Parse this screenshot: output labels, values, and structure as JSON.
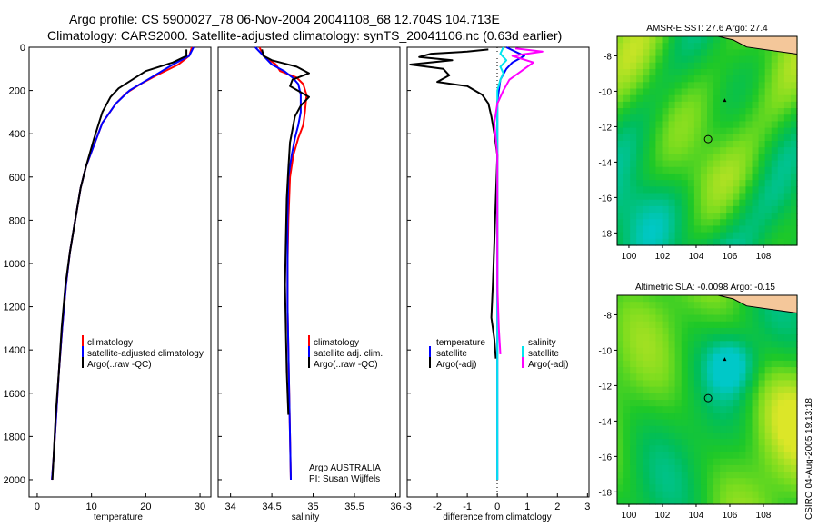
{
  "title": {
    "line1": "Argo profile: CS 5900027_78 06-Nov-2004 20041108_68 12.704S 104.713E",
    "line2": "Climatology: CARS2000. Satellite-adjusted climatology: synTS_20041106.nc (0.63d earlier)"
  },
  "colors": {
    "climatology": "#ff0000",
    "satellite": "#0000ff",
    "argo": "#000000",
    "salinity_sat": "#00e5ee",
    "salinity_argo": "#ff00ff"
  },
  "chart_data": [
    {
      "type": "line",
      "name": "temperature-profile",
      "xlabel": "temperature",
      "ylabel": "",
      "xlim": [
        -1.5,
        32
      ],
      "ylim": [
        2080,
        0
      ],
      "xticks": [
        "0",
        "10",
        "20",
        "30"
      ],
      "xtick_vals": [
        0,
        10,
        20,
        30
      ],
      "yticks": [
        "0",
        "200",
        "400",
        "600",
        "800",
        "1000",
        "1200",
        "1400",
        "1600",
        "1800",
        "2000"
      ],
      "ytick_vals": [
        0,
        200,
        400,
        600,
        800,
        1000,
        1200,
        1400,
        1600,
        1800,
        2000
      ],
      "legend": [
        "climatology",
        "satellite-adjusted climatology",
        "Argo(..raw -QC)"
      ],
      "series": [
        {
          "name": "climatology",
          "color": "#ff0000",
          "points": [
            [
              28.5,
              0
            ],
            [
              28,
              40
            ],
            [
              26,
              80
            ],
            [
              22,
              130
            ],
            [
              19,
              170
            ],
            [
              16.5,
              210
            ],
            [
              14.5,
              260
            ],
            [
              12,
              350
            ],
            [
              10.5,
              450
            ],
            [
              9,
              550
            ],
            [
              8,
              650
            ],
            [
              7,
              800
            ],
            [
              6,
              950
            ],
            [
              5.3,
              1100
            ],
            [
              4.6,
              1300
            ],
            [
              4,
              1500
            ],
            [
              3.5,
              1700
            ],
            [
              3,
              1900
            ],
            [
              2.7,
              2000
            ]
          ]
        },
        {
          "name": "satellite-adjusted climatology",
          "color": "#0000ff",
          "points": [
            [
              28.8,
              0
            ],
            [
              28,
              40
            ],
            [
              25,
              80
            ],
            [
              21,
              140
            ],
            [
              17,
              200
            ],
            [
              14.5,
              260
            ],
            [
              12,
              350
            ],
            [
              10.5,
              450
            ],
            [
              9,
              550
            ],
            [
              8,
              650
            ],
            [
              7,
              800
            ],
            [
              6,
              950
            ],
            [
              5.3,
              1100
            ],
            [
              4.6,
              1300
            ],
            [
              4,
              1500
            ],
            [
              3.5,
              1700
            ],
            [
              3,
              1900
            ],
            [
              2.7,
              2000
            ]
          ]
        },
        {
          "name": "Argo(..raw -QC)",
          "color": "#000000",
          "points": [
            [
              27.5,
              10
            ],
            [
              27.5,
              40
            ],
            [
              25,
              70
            ],
            [
              20,
              110
            ],
            [
              17.5,
              150
            ],
            [
              15,
              190
            ],
            [
              13.5,
              230
            ],
            [
              12,
              300
            ],
            [
              10.5,
              420
            ],
            [
              9,
              550
            ],
            [
              8,
              650
            ],
            [
              7,
              800
            ],
            [
              6,
              950
            ],
            [
              5.2,
              1100
            ],
            [
              4.5,
              1300
            ],
            [
              4,
              1500
            ],
            [
              3.4,
              1700
            ],
            [
              3,
              1900
            ],
            [
              2.8,
              2000
            ]
          ]
        }
      ]
    },
    {
      "type": "line",
      "name": "salinity-profile",
      "xlabel": "salinity",
      "xlim": [
        33.85,
        36.05
      ],
      "ylim": [
        2080,
        0
      ],
      "xticks": [
        "34",
        "34.5",
        "35",
        "35.5",
        "36"
      ],
      "xtick_vals": [
        34,
        34.5,
        35,
        35.5,
        36
      ],
      "legend": [
        "climatology",
        "satellite adj. clim.",
        "Argo(..raw -QC)"
      ],
      "annotation": [
        "Argo AUSTRALIA",
        "PI: Susan Wijffels"
      ],
      "series": [
        {
          "name": "climatology",
          "color": "#ff0000",
          "points": [
            [
              34.35,
              0
            ],
            [
              34.4,
              40
            ],
            [
              34.55,
              80
            ],
            [
              34.6,
              110
            ],
            [
              34.8,
              140
            ],
            [
              34.88,
              170
            ],
            [
              34.92,
              220
            ],
            [
              34.9,
              300
            ],
            [
              34.88,
              360
            ],
            [
              34.82,
              420
            ],
            [
              34.76,
              500
            ],
            [
              34.72,
              600
            ],
            [
              34.7,
              800
            ],
            [
              34.69,
              1000
            ],
            [
              34.69,
              1200
            ],
            [
              34.7,
              1400
            ],
            [
              34.71,
              1600
            ],
            [
              34.72,
              1800
            ],
            [
              34.73,
              2000
            ]
          ]
        },
        {
          "name": "satellite adj. clim.",
          "color": "#0000ff",
          "points": [
            [
              34.3,
              0
            ],
            [
              34.4,
              40
            ],
            [
              34.5,
              80
            ],
            [
              34.65,
              110
            ],
            [
              34.75,
              140
            ],
            [
              34.82,
              170
            ],
            [
              34.85,
              220
            ],
            [
              34.85,
              300
            ],
            [
              34.82,
              360
            ],
            [
              34.78,
              420
            ],
            [
              34.74,
              500
            ],
            [
              34.7,
              600
            ],
            [
              34.69,
              800
            ],
            [
              34.69,
              1000
            ],
            [
              34.69,
              1200
            ],
            [
              34.7,
              1400
            ],
            [
              34.71,
              1600
            ],
            [
              34.72,
              1800
            ],
            [
              34.73,
              2000
            ]
          ]
        },
        {
          "name": "Argo(..raw -QC)",
          "color": "#000000",
          "points": [
            [
              34.38,
              10
            ],
            [
              34.4,
              40
            ],
            [
              34.5,
              60
            ],
            [
              34.65,
              75
            ],
            [
              34.8,
              90
            ],
            [
              34.95,
              120
            ],
            [
              34.75,
              150
            ],
            [
              34.72,
              180
            ],
            [
              34.95,
              230
            ],
            [
              34.85,
              270
            ],
            [
              34.78,
              320
            ],
            [
              34.75,
              380
            ],
            [
              34.72,
              440
            ],
            [
              34.7,
              560
            ],
            [
              34.68,
              700
            ],
            [
              34.67,
              900
            ],
            [
              34.66,
              1100
            ],
            [
              34.67,
              1300
            ],
            [
              34.68,
              1500
            ],
            [
              34.7,
              1700
            ]
          ]
        }
      ]
    },
    {
      "type": "line",
      "name": "difference-profile",
      "xlabel": "difference from climatology",
      "xlim": [
        -3,
        3.05
      ],
      "ylim": [
        2080,
        0
      ],
      "xticks": [
        "-3",
        "-2",
        "-1",
        "0",
        "1",
        "2",
        "3"
      ],
      "xtick_vals": [
        -3,
        -2,
        -1,
        0,
        1,
        2,
        3
      ],
      "legend_left": [
        "temperature",
        "satellite",
        "Argo(-adj)"
      ],
      "legend_right": [
        "salinity",
        "satellite",
        "Argo(-adj)"
      ],
      "series": [
        {
          "name": "temperature satellite",
          "color": "#0000ff",
          "points": [
            [
              0.3,
              0
            ],
            [
              0.6,
              20
            ],
            [
              0.9,
              40
            ],
            [
              0.5,
              70
            ],
            [
              0.3,
              100
            ],
            [
              0.1,
              150
            ],
            [
              0,
              250
            ],
            [
              0,
              400
            ],
            [
              0,
              600
            ],
            [
              0,
              800
            ],
            [
              0,
              1000
            ],
            [
              0,
              1200
            ],
            [
              0,
              1400
            ],
            [
              0,
              1600
            ],
            [
              0,
              1800
            ],
            [
              0,
              2000
            ]
          ]
        },
        {
          "name": "temperature Argo(-adj)",
          "color": "#000000",
          "points": [
            [
              -0.3,
              10
            ],
            [
              -1,
              20
            ],
            [
              -2.2,
              30
            ],
            [
              -2.6,
              45
            ],
            [
              -1.5,
              60
            ],
            [
              -2.9,
              80
            ],
            [
              -1.8,
              100
            ],
            [
              -1.6,
              130
            ],
            [
              -2,
              160
            ],
            [
              -1,
              180
            ],
            [
              -0.5,
              220
            ],
            [
              -0.3,
              260
            ],
            [
              -0.2,
              320
            ],
            [
              -0.1,
              400
            ],
            [
              0,
              500
            ],
            [
              -0.05,
              700
            ],
            [
              -0.1,
              900
            ],
            [
              -0.15,
              1100
            ],
            [
              -0.2,
              1250
            ],
            [
              -0.1,
              1350
            ],
            [
              -0.05,
              1440
            ]
          ]
        },
        {
          "name": "salinity satellite",
          "color": "#00e5ee",
          "points": [
            [
              0.2,
              0
            ],
            [
              0.1,
              30
            ],
            [
              0.3,
              60
            ],
            [
              0.1,
              90
            ],
            [
              0.2,
              120
            ],
            [
              0.1,
              150
            ],
            [
              0,
              200
            ],
            [
              0,
              300
            ],
            [
              0,
              500
            ],
            [
              0,
              700
            ],
            [
              0,
              900
            ],
            [
              0,
              1100
            ],
            [
              0,
              1300
            ],
            [
              0,
              1500
            ],
            [
              0,
              1700
            ],
            [
              0,
              1900
            ],
            [
              0,
              2000
            ]
          ]
        },
        {
          "name": "salinity Argo(-adj)",
          "color": "#ff00ff",
          "points": [
            [
              0.6,
              5
            ],
            [
              1.5,
              20
            ],
            [
              0.5,
              40
            ],
            [
              1.2,
              70
            ],
            [
              0.8,
              110
            ],
            [
              0.4,
              150
            ],
            [
              0.2,
              200
            ],
            [
              0,
              260
            ],
            [
              -0.1,
              350
            ],
            [
              0,
              500
            ],
            [
              0,
              700
            ],
            [
              0,
              900
            ],
            [
              0,
              1100
            ],
            [
              0.05,
              1300
            ],
            [
              0.1,
              1420
            ]
          ]
        }
      ]
    },
    {
      "type": "heatmap",
      "name": "sst-map",
      "title": "AMSR-E SST: 27.6 Argo: 27.4",
      "xticks": [
        "100",
        "102",
        "104",
        "106",
        "108"
      ],
      "xtick_vals": [
        100,
        102,
        104,
        106,
        108
      ],
      "yticks": [
        "-8",
        "-10",
        "-12",
        "-14",
        "-16",
        "-18"
      ],
      "ytick_vals": [
        -8,
        -10,
        -12,
        -14,
        -16,
        -18
      ],
      "xlim": [
        99.3,
        110
      ],
      "ylim": [
        -18.7,
        -6.9
      ],
      "float_position": [
        104.713,
        -12.704
      ],
      "marker": [
        105.7,
        -10.5
      ]
    },
    {
      "type": "heatmap",
      "name": "sla-map",
      "title": "Altimetric SLA: -0.0098 Argo: -0.15",
      "xticks": [
        "100",
        "102",
        "104",
        "106",
        "108"
      ],
      "xtick_vals": [
        100,
        102,
        104,
        106,
        108
      ],
      "yticks": [
        "-8",
        "-10",
        "-12",
        "-14",
        "-16",
        "-18"
      ],
      "ytick_vals": [
        -8,
        -10,
        -12,
        -14,
        -16,
        -18
      ],
      "xlim": [
        99.3,
        110
      ],
      "ylim": [
        -18.7,
        -6.9
      ],
      "float_position": [
        104.713,
        -12.704
      ],
      "marker": [
        105.7,
        -10.5
      ]
    }
  ],
  "stamp": "CSIRO 04-Aug-2005 19:13:18"
}
